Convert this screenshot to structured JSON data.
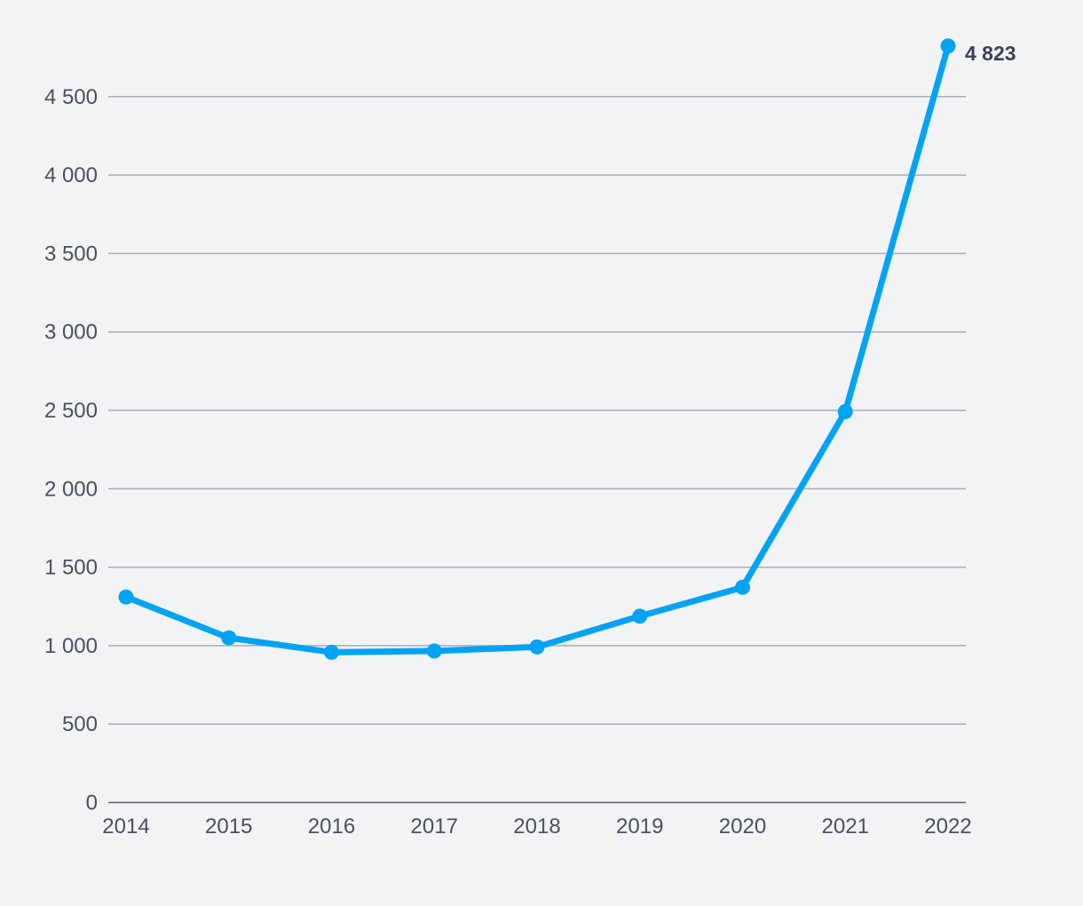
{
  "chart_data": {
    "type": "line",
    "title": "",
    "xlabel": "",
    "ylabel": "",
    "categories": [
      "2014",
      "2015",
      "2016",
      "2017",
      "2018",
      "2019",
      "2020",
      "2021",
      "2022"
    ],
    "series": [
      {
        "values": [
          1310,
          1050,
          958,
          966,
          992,
          1188,
          1372,
          2492,
          4823
        ],
        "color": "#03a3f4"
      }
    ],
    "ylim": [
      0,
      4823
    ],
    "yticks": [
      0,
      500,
      1000,
      1500,
      2000,
      2500,
      3000,
      3500,
      4000,
      4500
    ],
    "ytick_labels": [
      "0",
      "500",
      "1 000",
      "1 500",
      "2 000",
      "2 500",
      "3 000",
      "3 500",
      "4 000",
      "4 500"
    ],
    "grid": true,
    "legend": "none",
    "annotations": [
      {
        "category": "2022",
        "text": "4 823"
      }
    ]
  }
}
